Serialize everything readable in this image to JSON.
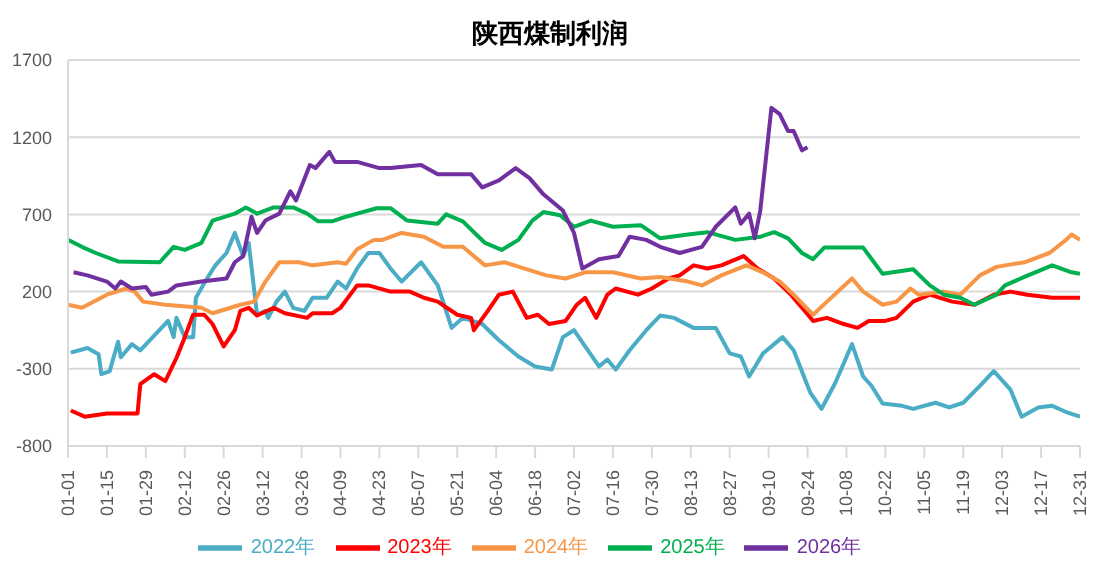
{
  "chart_data": {
    "type": "line",
    "title": "陕西煤制利润",
    "xlim": [
      "--01-01",
      "--12-31"
    ],
    "xticks": [
      {
        "value": "--01-01",
        "label": "01-01"
      },
      {
        "value": "--01-15",
        "label": "01-15"
      },
      {
        "value": "--01-29",
        "label": "01-29"
      },
      {
        "value": "--02-12",
        "label": "02-12"
      },
      {
        "value": "--02-26",
        "label": "02-26"
      },
      {
        "value": "--03-12",
        "label": "03-12"
      },
      {
        "value": "--03-26",
        "label": "03-26"
      },
      {
        "value": "--04-09",
        "label": "04-09"
      },
      {
        "value": "--04-23",
        "label": "04-23"
      },
      {
        "value": "--05-07",
        "label": "05-07"
      },
      {
        "value": "--05-21",
        "label": "05-21"
      },
      {
        "value": "--06-04",
        "label": "06-04"
      },
      {
        "value": "--06-18",
        "label": "06-18"
      },
      {
        "value": "--07-02",
        "label": "07-02"
      },
      {
        "value": "--07-16",
        "label": "07-16"
      },
      {
        "value": "--07-30",
        "label": "07-30"
      },
      {
        "value": "--08-13",
        "label": "08-13"
      },
      {
        "value": "--08-27",
        "label": "08-27"
      },
      {
        "value": "--09-10",
        "label": "09-10"
      },
      {
        "value": "--09-24",
        "label": "09-24"
      },
      {
        "value": "--10-08",
        "label": "10-08"
      },
      {
        "value": "--10-22",
        "label": "10-22"
      },
      {
        "value": "--11-05",
        "label": "11-05"
      },
      {
        "value": "--11-19",
        "label": "11-19"
      },
      {
        "value": "--12-03",
        "label": "12-03"
      },
      {
        "value": "--12-17",
        "label": "12-17"
      },
      {
        "value": "--12-31",
        "label": "12-31"
      }
    ],
    "ylim": [
      -800,
      1700
    ],
    "yticks": [
      -800,
      -300,
      200,
      700,
      1200,
      1700
    ],
    "grid": "y",
    "legend": "bottom",
    "marker": "none",
    "line_style": "solid",
    "series": [
      {
        "name": "2022年",
        "color": "#4bacc6",
        "x": [
          "--01-02",
          "--01-08",
          "--01-12",
          "--01-13",
          "--01-16",
          "--01-19",
          "--01-20",
          "--01-24",
          "--01-27",
          "--02-06",
          "--02-08",
          "--02-09",
          "--02-12",
          "--02-15",
          "--02-16",
          "--02-20",
          "--02-23",
          "--02-27",
          "--03-02",
          "--03-05",
          "--03-07",
          "--03-10",
          "--03-13",
          "--03-14",
          "--03-17",
          "--03-20",
          "--03-23",
          "--03-27",
          "--03-30",
          "--04-04",
          "--04-08",
          "--04-11",
          "--04-15",
          "--04-19",
          "--04-23",
          "--04-27",
          "--05-01",
          "--05-08",
          "--05-14",
          "--05-19",
          "--05-23",
          "--05-30",
          "--06-05",
          "--06-12",
          "--06-18",
          "--06-24",
          "--06-28",
          "--07-02",
          "--07-06",
          "--07-11",
          "--07-14",
          "--07-17",
          "--07-22",
          "--07-28",
          "--08-02",
          "--08-07",
          "--08-14",
          "--08-22",
          "--08-27",
          "--08-31",
          "--09-03",
          "--09-08",
          "--09-15",
          "--09-19",
          "--09-25",
          "--09-29",
          "--10-04",
          "--10-10",
          "--10-14",
          "--10-17",
          "--10-21",
          "--10-28",
          "--11-01",
          "--11-09",
          "--11-14",
          "--11-19",
          "--11-25",
          "--11-30",
          "--12-06",
          "--12-10",
          "--12-16",
          "--12-21",
          "--12-26",
          "--12-31"
        ],
        "values": [
          -195,
          -165,
          -205,
          -335,
          -315,
          -125,
          -225,
          -140,
          -180,
          10,
          -95,
          30,
          -95,
          -95,
          160,
          285,
          370,
          450,
          580,
          430,
          515,
          50,
          75,
          30,
          135,
          200,
          95,
          75,
          160,
          160,
          265,
          220,
          350,
          450,
          450,
          350,
          265,
          390,
          240,
          -35,
          30,
          -10,
          -115,
          -220,
          -285,
          -305,
          -95,
          -50,
          -155,
          -285,
          -240,
          -305,
          -180,
          -50,
          45,
          30,
          -35,
          -35,
          -200,
          -220,
          -350,
          -200,
          -95,
          -180,
          -455,
          -560,
          -390,
          -140,
          -350,
          -410,
          -525,
          -540,
          -560,
          -520,
          -550,
          -520,
          -410,
          -315,
          -435,
          -610,
          -550,
          -540,
          -580,
          -610
        ]
      },
      {
        "name": "2023年",
        "color": "#ff0000",
        "x": [
          "--01-02",
          "--01-07",
          "--01-15",
          "--01-26",
          "--01-27",
          "--02-01",
          "--02-05",
          "--02-09",
          "--02-12",
          "--02-15",
          "--02-19",
          "--02-22",
          "--02-26",
          "--03-02",
          "--03-04",
          "--03-07",
          "--03-10",
          "--03-16",
          "--03-20",
          "--03-28",
          "--03-30",
          "--04-06",
          "--04-09",
          "--04-15",
          "--04-19",
          "--04-27",
          "--05-04",
          "--05-09",
          "--05-14",
          "--05-21",
          "--05-26",
          "--05-27",
          "--06-01",
          "--06-05",
          "--06-10",
          "--06-15",
          "--06-19",
          "--06-23",
          "--06-29",
          "--07-03",
          "--07-06",
          "--07-10",
          "--07-14",
          "--07-17",
          "--07-25",
          "--07-30",
          "--08-05",
          "--08-09",
          "--08-14",
          "--08-19",
          "--08-24",
          "--09-01",
          "--09-06",
          "--09-12",
          "--09-18",
          "--09-23",
          "--09-26",
          "--10-01",
          "--10-07",
          "--10-12",
          "--10-16",
          "--10-22",
          "--10-26",
          "--11-01",
          "--11-07",
          "--11-15",
          "--11-23",
          "--11-30",
          "--12-06",
          "--12-12",
          "--12-21",
          "--12-28",
          "--12-31"
        ],
        "values": [
          -570,
          -610,
          -590,
          -590,
          -400,
          -335,
          -380,
          -230,
          -95,
          50,
          50,
          -10,
          -155,
          -50,
          75,
          95,
          45,
          95,
          60,
          30,
          60,
          60,
          95,
          240,
          240,
          200,
          200,
          160,
          135,
          50,
          30,
          -50,
          75,
          180,
          200,
          30,
          50,
          -10,
          10,
          115,
          160,
          30,
          180,
          220,
          180,
          220,
          285,
          305,
          370,
          350,
          370,
          430,
          350,
          285,
          180,
          75,
          10,
          30,
          -10,
          -35,
          10,
          10,
          30,
          135,
          180,
          135,
          115,
          180,
          200,
          180,
          160,
          160,
          160
        ]
      },
      {
        "name": "2024年",
        "color": "#f79646",
        "x": [
          "--01-01",
          "--01-06",
          "--01-15",
          "--01-22",
          "--01-25",
          "--01-28",
          "--02-05",
          "--02-18",
          "--02-22",
          "--03-04",
          "--03-09",
          "--03-13",
          "--03-18",
          "--03-25",
          "--03-30",
          "--04-08",
          "--04-11",
          "--04-15",
          "--04-21",
          "--04-24",
          "--05-01",
          "--05-09",
          "--05-16",
          "--05-23",
          "--05-31",
          "--06-07",
          "--06-14",
          "--06-22",
          "--06-29",
          "--07-06",
          "--07-16",
          "--07-26",
          "--08-02",
          "--08-12",
          "--08-17",
          "--08-24",
          "--09-02",
          "--09-08",
          "--09-14",
          "--09-19",
          "--09-26",
          "--10-01",
          "--10-10",
          "--10-14",
          "--10-21",
          "--10-26",
          "--10-31",
          "--11-03",
          "--11-12",
          "--11-18",
          "--11-25",
          "--12-01",
          "--12-11",
          "--12-20",
          "--12-26",
          "--12-28",
          "--12-31"
        ],
        "values": [
          115,
          95,
          180,
          220,
          200,
          135,
          115,
          95,
          60,
          115,
          135,
          265,
          390,
          390,
          370,
          390,
          380,
          475,
          535,
          535,
          580,
          555,
          490,
          490,
          370,
          390,
          350,
          305,
          285,
          325,
          325,
          285,
          295,
          265,
          240,
          305,
          370,
          325,
          265,
          180,
          50,
          135,
          285,
          200,
          115,
          135,
          220,
          180,
          200,
          180,
          305,
          360,
          390,
          450,
          535,
          570,
          535
        ]
      },
      {
        "name": "2025年",
        "color": "#00b050",
        "x": [
          "--01-01",
          "--01-06",
          "--01-11",
          "--01-19",
          "--02-03",
          "--02-08",
          "--02-12",
          "--02-18",
          "--02-22",
          "--03-02",
          "--03-06",
          "--03-10",
          "--03-16",
          "--03-23",
          "--03-28",
          "--04-01",
          "--04-06",
          "--04-11",
          "--04-15",
          "--04-22",
          "--04-27",
          "--05-03",
          "--05-14",
          "--05-17",
          "--05-23",
          "--05-31",
          "--06-06",
          "--06-12",
          "--06-17",
          "--06-21",
          "--06-27",
          "--07-02",
          "--07-08",
          "--07-16",
          "--07-26",
          "--08-02",
          "--08-12",
          "--08-19",
          "--08-29",
          "--09-07",
          "--09-12",
          "--09-17",
          "--09-22",
          "--09-26",
          "--09-30",
          "--10-14",
          "--10-21",
          "--11-01",
          "--11-07",
          "--11-12",
          "--11-18",
          "--11-23",
          "--12-01",
          "--12-04",
          "--12-11",
          "--12-21",
          "--12-28",
          "--12-31"
        ],
        "values": [
          535,
          490,
          450,
          395,
          390,
          490,
          470,
          515,
          660,
          705,
          745,
          705,
          745,
          745,
          705,
          655,
          655,
          685,
          705,
          740,
          740,
          660,
          640,
          700,
          655,
          515,
          470,
          535,
          660,
          715,
          695,
          620,
          660,
          620,
          630,
          545,
          570,
          585,
          535,
          555,
          585,
          545,
          450,
          410,
          485,
          485,
          315,
          345,
          240,
          180,
          160,
          115,
          180,
          240,
          295,
          370,
          325,
          315
        ]
      },
      {
        "name": "2026年",
        "color": "#7030a0",
        "x": [
          "--01-03",
          "--01-08",
          "--01-15",
          "--01-18",
          "--01-20",
          "--01-24",
          "--01-29",
          "--01-31",
          "--02-06",
          "--02-09",
          "--02-18",
          "--02-27",
          "--03-02",
          "--03-05",
          "--03-08",
          "--03-10",
          "--03-13",
          "--03-18",
          "--03-22",
          "--03-24",
          "--03-29",
          "--03-31",
          "--04-05",
          "--04-07",
          "--04-15",
          "--04-23",
          "--04-27",
          "--05-08",
          "--05-14",
          "--05-26",
          "--05-30",
          "--06-05",
          "--06-11",
          "--06-16",
          "--06-21",
          "--06-28",
          "--07-02",
          "--07-05",
          "--07-11",
          "--07-18",
          "--07-22",
          "--07-28",
          "--08-02",
          "--08-09",
          "--08-17",
          "--08-22",
          "--08-29",
          "--08-31",
          "--09-03",
          "--09-05",
          "--09-07",
          "--09-11",
          "--09-14",
          "--09-17",
          "--09-19",
          "--09-22",
          "--09-24"
        ],
        "values": [
          325,
          305,
          265,
          220,
          265,
          220,
          230,
          180,
          200,
          240,
          265,
          285,
          390,
          430,
          685,
          580,
          660,
          705,
          850,
          790,
          1020,
          1000,
          1105,
          1040,
          1040,
          1000,
          1000,
          1020,
          960,
          960,
          875,
          920,
          1000,
          935,
          830,
          725,
          580,
          350,
          410,
          430,
          555,
          535,
          490,
          450,
          490,
          620,
          745,
          640,
          705,
          545,
          725,
          1390,
          1350,
          1240,
          1240,
          1115,
          1135
        ]
      }
    ]
  }
}
